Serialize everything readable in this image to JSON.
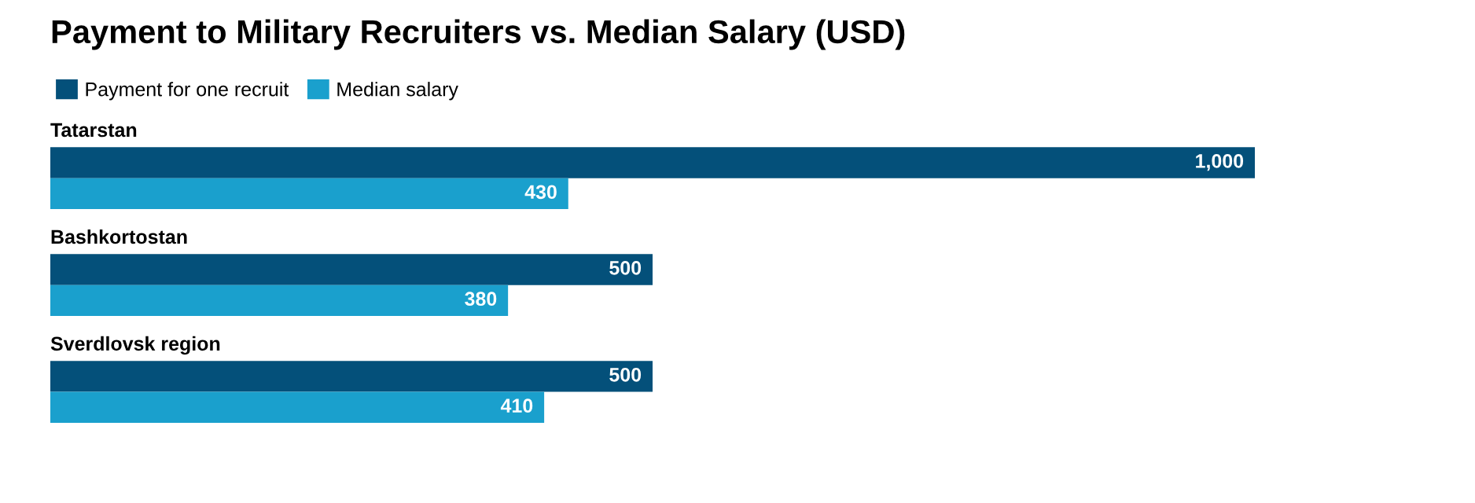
{
  "chart_data": {
    "type": "bar",
    "orientation": "horizontal",
    "title": "Payment to Military Recruiters vs. Median Salary (USD)",
    "categories": [
      "Tatarstan",
      "Bashkortostan",
      "Sverdlovsk region"
    ],
    "series": [
      {
        "name": "Payment for one recruit",
        "color": "#04507a",
        "values": [
          1000,
          500,
          500
        ],
        "value_labels": [
          "1,000",
          "500",
          "500"
        ]
      },
      {
        "name": "Median salary",
        "color": "#1aa0cd",
        "values": [
          430,
          380,
          410
        ],
        "value_labels": [
          "430",
          "380",
          "410"
        ]
      }
    ],
    "legend": "top left"
  }
}
